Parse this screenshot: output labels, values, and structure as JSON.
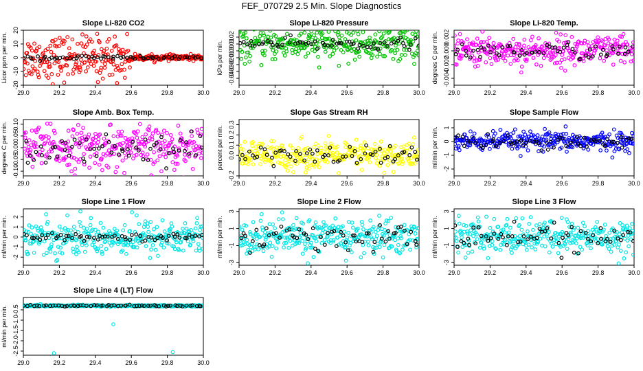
{
  "figure": {
    "title": "FEF_070729  2.5 Min. Slope Diagnostics"
  },
  "chart_data": [
    {
      "type": "scatter",
      "title": "Slope Li-820 CO2",
      "ylabel": "Licor ppm per min.",
      "xlabel": "",
      "xlim": [
        29.0,
        30.0
      ],
      "ylim": [
        -20,
        20
      ],
      "xticks": [
        "29.0",
        "29.2",
        "29.4",
        "29.6",
        "29.8",
        "30.0"
      ],
      "yticks": [
        "-20",
        "-10",
        "0",
        "10",
        "20"
      ],
      "colors": {
        "primary": "#ff0000",
        "secondary": "#000000"
      },
      "primary_spread": 8,
      "secondary_spread": 0.8,
      "primary_center": 0,
      "secondary_center": 0,
      "note": "points cluster near 0; red spread larger before 29.6"
    },
    {
      "type": "scatter",
      "title": "Slope Li-820 Pressure",
      "ylabel": "kPa per min.",
      "xlabel": "",
      "xlim": [
        29.0,
        30.0
      ],
      "ylim": [
        -0.05,
        0.03
      ],
      "xticks": [
        "29.0",
        "29.2",
        "29.4",
        "29.6",
        "29.8",
        "30.0"
      ],
      "yticks": [
        "-0.04",
        "-0.03",
        "-0.02",
        "-0.01",
        "0.00",
        "0.01",
        "0.02"
      ],
      "colors": {
        "primary": "#00c000",
        "secondary": "#000000"
      },
      "primary_spread": 0.012,
      "secondary_spread": 0.004,
      "primary_center": 0.01,
      "secondary_center": 0.01
    },
    {
      "type": "scatter",
      "title": "Slope Li-820 Temp.",
      "ylabel": "degrees C per min.",
      "xlabel": "",
      "xlim": [
        29.0,
        30.0
      ],
      "ylim": [
        -0.005,
        0.003
      ],
      "xticks": [
        "29.0",
        "29.2",
        "29.4",
        "29.6",
        "29.8",
        "30.0"
      ],
      "yticks": [
        "-0.004",
        "-0.002",
        "0.000",
        "0.002"
      ],
      "colors": {
        "primary": "#ff00ff",
        "secondary": "#000000"
      },
      "primary_spread": 0.0011,
      "secondary_spread": 0.0006,
      "primary_center": 0.0,
      "secondary_center": 0.0
    },
    {
      "type": "scatter",
      "title": "Slope Amb. Box Temp.",
      "ylabel": "degrees C per min.",
      "xlabel": "",
      "xlim": [
        29.0,
        30.0
      ],
      "ylim": [
        -0.12,
        0.12
      ],
      "xticks": [
        "29.0",
        "29.2",
        "29.4",
        "29.6",
        "29.8",
        "30.0"
      ],
      "yticks": [
        "-0.10",
        "-0.05",
        "0.00",
        "0.05",
        "0.10"
      ],
      "colors": {
        "primary": "#ff00ff",
        "secondary": "#000000"
      },
      "primary_spread": 0.045,
      "secondary_spread": 0.03,
      "primary_center": 0.0,
      "secondary_center": 0.0
    },
    {
      "type": "scatter",
      "title": "Slope Gas Stream RH",
      "ylabel": "percent per min.",
      "xlabel": "",
      "xlim": [
        29.0,
        30.0
      ],
      "ylim": [
        -0.2,
        0.35
      ],
      "xticks": [
        "29.0",
        "29.2",
        "29.4",
        "29.6",
        "29.8",
        "30.0"
      ],
      "yticks": [
        "-0.2",
        "0.0",
        "0.1",
        "0.2",
        "0.3"
      ],
      "colors": {
        "primary": "#ffff00",
        "secondary": "#000000"
      },
      "primary_spread": 0.07,
      "secondary_spread": 0.05,
      "primary_center": 0.0,
      "secondary_center": 0.0
    },
    {
      "type": "scatter",
      "title": "Slope Sample Flow",
      "ylabel": "ml/min per min.",
      "xlabel": "",
      "xlim": [
        29.0,
        30.0
      ],
      "ylim": [
        -2.5,
        1.6
      ],
      "xticks": [
        "29.0",
        "29.2",
        "29.4",
        "29.6",
        "29.8",
        "30.0"
      ],
      "yticks": [
        "-2",
        "-1",
        "0",
        "1"
      ],
      "colors": {
        "primary": "#0000ff",
        "secondary": "#000000"
      },
      "primary_spread": 0.35,
      "secondary_spread": 0.25,
      "primary_center": 0.0,
      "secondary_center": 0.0
    },
    {
      "type": "scatter",
      "title": "Slope Line 1 Flow",
      "ylabel": "ml/min per min.",
      "xlabel": "",
      "xlim": [
        29.0,
        30.0
      ],
      "ylim": [
        -2.8,
        2.8
      ],
      "xticks": [
        "29.0",
        "29.2",
        "29.4",
        "29.6",
        "29.8",
        "30.0"
      ],
      "yticks": [
        "-2",
        "-1",
        "0",
        "1",
        "2"
      ],
      "colors": {
        "primary": "#00e5e5",
        "secondary": "#000000"
      },
      "primary_spread": 0.9,
      "secondary_spread": 0.15,
      "primary_center": 0.0,
      "secondary_center": 0.0
    },
    {
      "type": "scatter",
      "title": "Slope Line 2 Flow",
      "ylabel": "ml/min per min.",
      "xlabel": "",
      "xlim": [
        29.0,
        30.0
      ],
      "ylim": [
        -3.3,
        3.3
      ],
      "xticks": [
        "29.0",
        "29.2",
        "29.4",
        "29.6",
        "29.8",
        "30.0"
      ],
      "yticks": [
        "-3",
        "-1",
        "1",
        "3"
      ],
      "colors": {
        "primary": "#00e5e5",
        "secondary": "#000000"
      },
      "primary_spread": 1.1,
      "secondary_spread": 0.8,
      "primary_center": 0.0,
      "secondary_center": 0.0
    },
    {
      "type": "scatter",
      "title": "Slope Line 3 Flow",
      "ylabel": "ml/min per min.",
      "xlabel": "",
      "xlim": [
        29.0,
        30.0
      ],
      "ylim": [
        -3.3,
        3.3
      ],
      "xticks": [
        "29.0",
        "29.2",
        "29.4",
        "29.6",
        "29.8",
        "30.0"
      ],
      "yticks": [
        "-3",
        "-1",
        "1",
        "3"
      ],
      "colors": {
        "primary": "#00e5e5",
        "secondary": "#000000"
      },
      "primary_spread": 1.0,
      "secondary_spread": 0.8,
      "primary_center": 0.0,
      "secondary_center": 0.0
    },
    {
      "type": "scatter",
      "title": "Slope Line 4 (LT) Flow",
      "ylabel": "ml/min per min.",
      "xlabel": "",
      "xlim": [
        29.0,
        30.0
      ],
      "ylim": [
        -2.7,
        0.1
      ],
      "xticks": [
        "29.0",
        "29.2",
        "29.4",
        "29.6",
        "29.8",
        "30.0"
      ],
      "yticks": [
        "-2.5",
        "-2.0",
        "-1.5",
        "-1.0",
        "-0.5"
      ],
      "colors": {
        "primary": "#00e5e5",
        "secondary": "#000000"
      },
      "primary_spread": 0.02,
      "secondary_spread": 0.02,
      "primary_center": -0.3,
      "secondary_center": -0.3,
      "outliers": [
        {
          "x": 29.17,
          "y": -2.6
        },
        {
          "x": 29.5,
          "y": -1.2
        },
        {
          "x": 29.83,
          "y": -2.55
        }
      ]
    }
  ]
}
